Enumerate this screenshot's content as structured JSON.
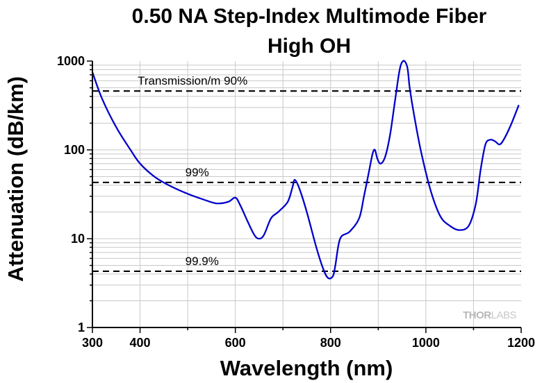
{
  "chart_data": {
    "type": "line",
    "title": "0.50 NA Step-Index Multimode Fiber",
    "subtitle": "High OH",
    "xlabel": "Wavelength (nm)",
    "ylabel": "Attenuation (dB/km)",
    "xlim": [
      300,
      1200
    ],
    "ylim": [
      1,
      1000
    ],
    "y_scale": "log",
    "x_ticks": [
      300,
      400,
      600,
      800,
      1000,
      1200
    ],
    "y_ticks": [
      1,
      10,
      100,
      1000
    ],
    "x_tick_labels": [
      "300",
      "400",
      "600",
      "800",
      "1000",
      "1200"
    ],
    "y_tick_labels": [
      "1",
      "10",
      "100",
      "1000"
    ],
    "grid": true,
    "series": [
      {
        "color": "#0000cc",
        "x": [
          300,
          320,
          350,
          380,
          400,
          430,
          460,
          500,
          530,
          560,
          585,
          600,
          610,
          625,
          640,
          650,
          660,
          675,
          690,
          710,
          720,
          725,
          735,
          750,
          770,
          785,
          795,
          805,
          810,
          820,
          840,
          860,
          870,
          880,
          888,
          893,
          898,
          905,
          915,
          925,
          935,
          945,
          952,
          958,
          962,
          966,
          975,
          990,
          1010,
          1030,
          1050,
          1070,
          1090,
          1105,
          1115,
          1125,
          1135,
          1145,
          1155,
          1165,
          1180,
          1195
        ],
        "y": [
          750,
          380,
          180,
          100,
          70,
          50,
          40,
          32,
          28,
          25,
          26,
          29,
          24,
          16,
          11,
          10,
          11,
          17,
          20,
          26,
          38,
          46,
          36,
          20,
          8,
          4.5,
          3.6,
          3.8,
          5,
          10,
          12,
          17,
          30,
          55,
          90,
          100,
          80,
          70,
          85,
          150,
          350,
          800,
          1000,
          950,
          800,
          500,
          250,
          95,
          35,
          18,
          14,
          12.5,
          14,
          25,
          60,
          115,
          130,
          125,
          115,
          135,
          200,
          320
        ]
      }
    ],
    "reference_lines": [
      {
        "y": 460,
        "label": "Transmission/m 90%",
        "label_x": 395,
        "style": "dashed"
      },
      {
        "y": 43,
        "label": "99%",
        "label_x": 495,
        "style": "dashed"
      },
      {
        "y": 4.3,
        "label": "99.9%",
        "label_x": 495,
        "style": "dashed"
      }
    ]
  },
  "logo": {
    "part1": "THOR",
    "part2": "LABS"
  },
  "colors": {
    "curve": "#0000cc",
    "grid": "#c8c8c8",
    "reference": "#000000"
  }
}
